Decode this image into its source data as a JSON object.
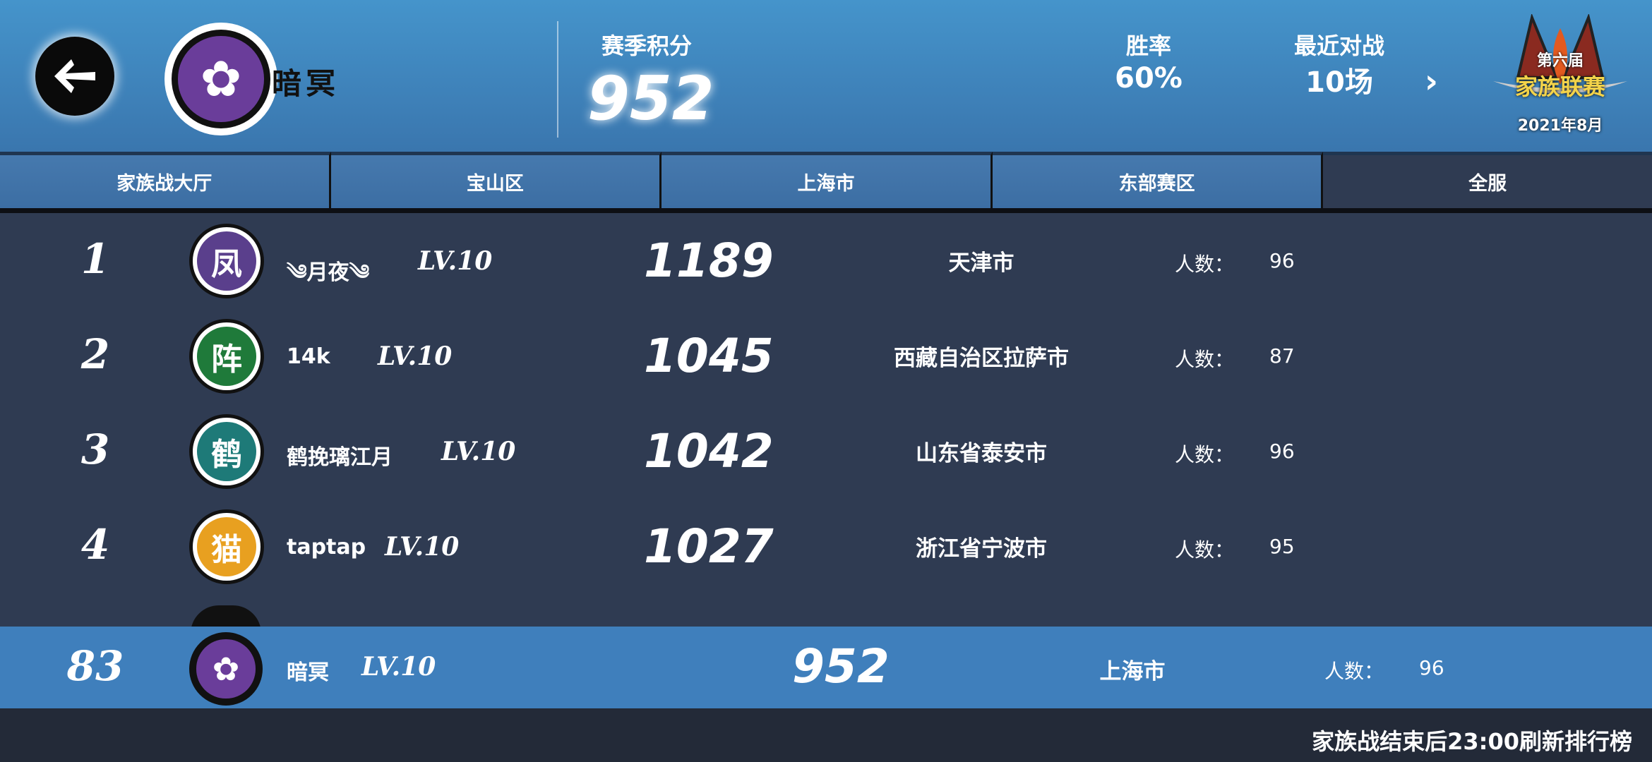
{
  "header": {
    "back_icon": "arrow-left-icon",
    "family_name": "暗冥",
    "season_points_label": "赛季积分",
    "season_points": "952",
    "win_rate_label": "胜率",
    "win_rate": "60%",
    "recent_label": "最近对战",
    "recent_value": "10场",
    "more_icon": "chevron-right-icon",
    "badge": {
      "line1": "第六届",
      "line2": "家族联赛",
      "line3": "2021年8月"
    }
  },
  "tabs": [
    {
      "label": "家族战大厅"
    },
    {
      "label": "宝山区"
    },
    {
      "label": "上海市"
    },
    {
      "label": "东部赛区"
    },
    {
      "label": "全服",
      "active": true
    }
  ],
  "rows": [
    {
      "rank": "1",
      "name": "༄月夜༄",
      "level": "LV.10",
      "score": "1189",
      "city": "天津市",
      "count_label": "人数：",
      "count": "96",
      "emblem_color": "#5a3f8c",
      "emblem_glyph": "凤"
    },
    {
      "rank": "2",
      "name": "14k",
      "level": "LV.10",
      "score": "1045",
      "city": "西藏自治区拉萨市",
      "count_label": "人数：",
      "count": "87",
      "emblem_color": "#1f7a3a",
      "emblem_glyph": "阵"
    },
    {
      "rank": "3",
      "name": "鹤挽璃江月",
      "level": "LV.10",
      "score": "1042",
      "city": "山东省泰安市",
      "count_label": "人数：",
      "count": "96",
      "emblem_color": "#1e7a78",
      "emblem_glyph": "鹤"
    },
    {
      "rank": "4",
      "name": "taptap",
      "level": "LV.10",
      "score": "1027",
      "city": "浙江省宁波市",
      "count_label": "人数：",
      "count": "95",
      "emblem_color": "#e8a020",
      "emblem_glyph": "猫"
    }
  ],
  "mine": {
    "rank": "83",
    "name": "暗冥",
    "level": "LV.10",
    "score": "952",
    "city": "上海市",
    "count_label": "人数：",
    "count": "96"
  },
  "footer": {
    "note": "家族战结束后23:00刷新排行榜"
  },
  "colors": {
    "header": "#4594cb",
    "tab": "#4679ae",
    "list_bg": "#2f3b52",
    "mine_bar": "#3f7fbc",
    "footer": "#232a38"
  }
}
